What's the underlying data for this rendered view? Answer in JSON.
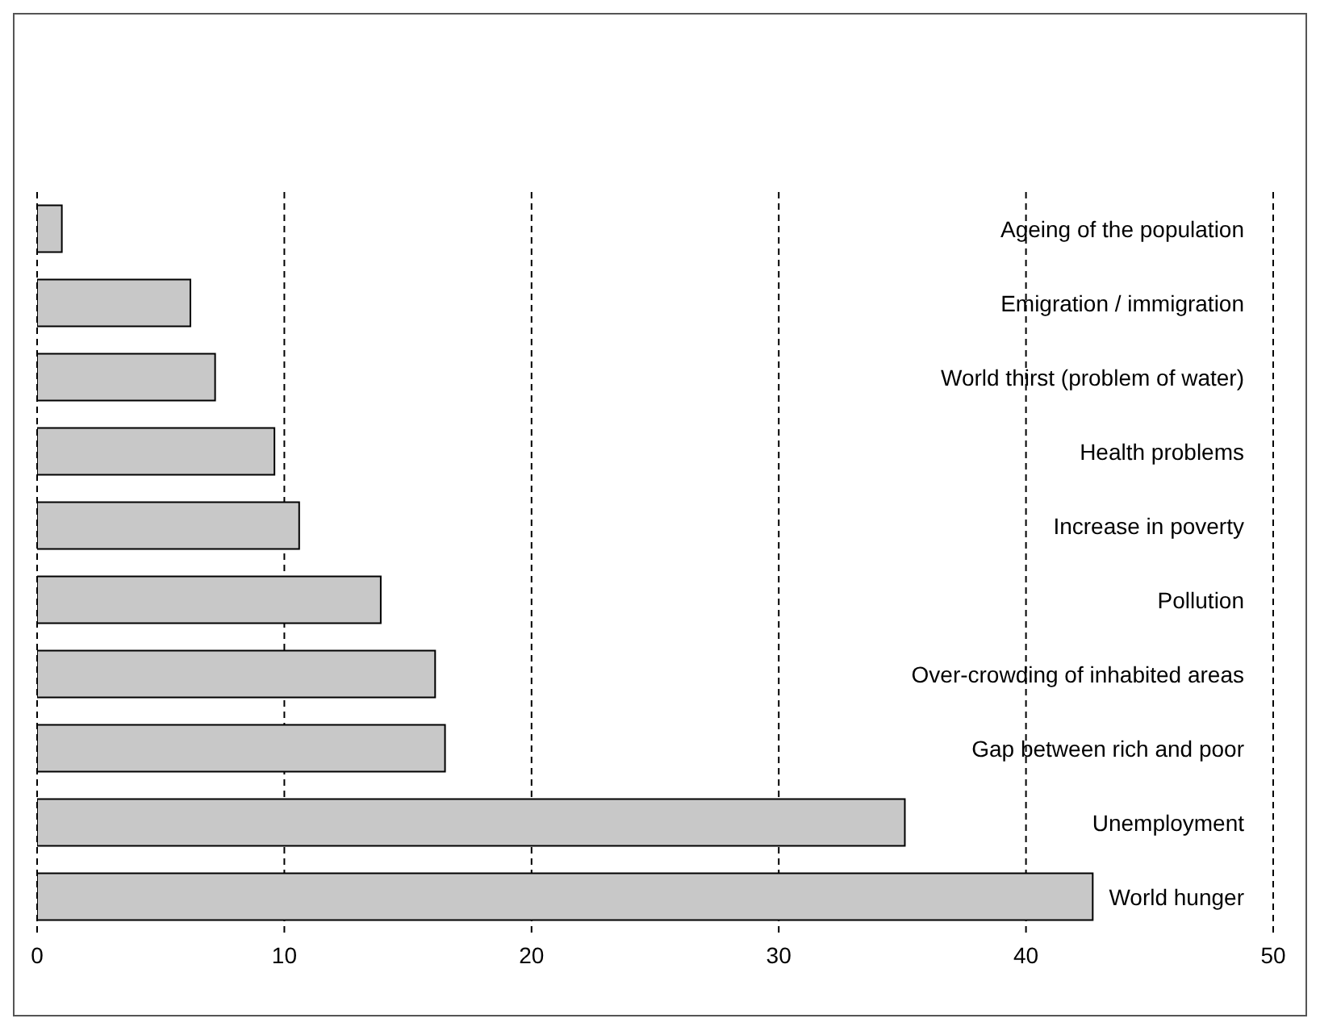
{
  "chart_data": {
    "type": "bar",
    "orientation": "horizontal",
    "categories": [
      "Ageing of the population",
      "Emigration / immigration",
      "World thirst (problem of water)",
      "Health problems",
      "Increase in poverty",
      "Pollution",
      "Over-crowding of inhabited areas",
      "Gap between rich and poor",
      "Unemployment",
      "World hunger"
    ],
    "values": [
      1.0,
      6.2,
      7.2,
      9.6,
      10.6,
      13.9,
      16.1,
      16.5,
      35.1,
      42.7
    ],
    "color": "#c8c8c8",
    "xlim": [
      0,
      50
    ],
    "xticks": [
      0,
      10,
      20,
      30,
      40,
      50
    ],
    "grid": "x"
  }
}
